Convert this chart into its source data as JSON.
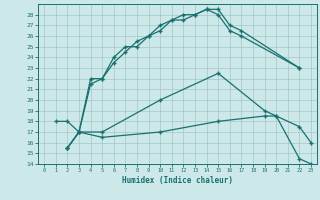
{
  "xlabel": "Humidex (Indice chaleur)",
  "bg_color": "#cce8e8",
  "grid_color": "#9bbfbf",
  "line_color": "#1a7070",
  "xlim": [
    -0.5,
    23.5
  ],
  "ylim": [
    14,
    29
  ],
  "xticks": [
    0,
    1,
    2,
    3,
    4,
    5,
    6,
    7,
    8,
    9,
    10,
    11,
    12,
    13,
    14,
    15,
    16,
    17,
    18,
    19,
    20,
    21,
    22,
    23
  ],
  "yticks": [
    14,
    15,
    16,
    17,
    18,
    19,
    20,
    21,
    22,
    23,
    24,
    25,
    26,
    27,
    28
  ],
  "line1_x": [
    1,
    2,
    3,
    4,
    5,
    6,
    7,
    8,
    9,
    10,
    11,
    12,
    13,
    14,
    15,
    16,
    17,
    22
  ],
  "line1_y": [
    18,
    18,
    17,
    22,
    22,
    24,
    25,
    25,
    26,
    26.5,
    27.5,
    27.5,
    28,
    28.5,
    28.5,
    27,
    26.5,
    23
  ],
  "line2_x": [
    2,
    3,
    4,
    5,
    6,
    7,
    8,
    9,
    10,
    11,
    12,
    13,
    14,
    15,
    16,
    17,
    22
  ],
  "line2_y": [
    15.5,
    17,
    21.5,
    22,
    23.5,
    24.5,
    25.5,
    26,
    27,
    27.5,
    28,
    28,
    28.5,
    28,
    26.5,
    26,
    23
  ],
  "line3_x": [
    2,
    3,
    5,
    10,
    15,
    19,
    20,
    22,
    23
  ],
  "line3_y": [
    15.5,
    17,
    17,
    20,
    22.5,
    19,
    18.5,
    17.5,
    16
  ],
  "line4_x": [
    2,
    3,
    5,
    10,
    15,
    19,
    20,
    22,
    23
  ],
  "line4_y": [
    15.5,
    17,
    16.5,
    17,
    18,
    18.5,
    18.5,
    14.5,
    14
  ]
}
